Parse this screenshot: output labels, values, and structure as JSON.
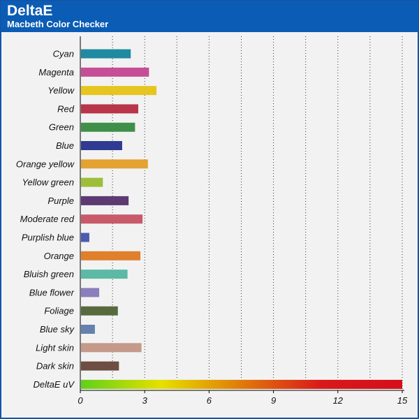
{
  "header": {
    "title": "DeltaE",
    "subtitle": "Macbeth Color Checker"
  },
  "colors": {
    "header_bg": "#0b5cb5",
    "plot_bg": "#f2f2f2",
    "grid": "#333333"
  },
  "chart_data": {
    "type": "bar",
    "orientation": "horizontal",
    "title": "DeltaE",
    "subtitle": "Macbeth Color Checker",
    "xlim": [
      0,
      15
    ],
    "xticks": [
      0,
      3,
      6,
      9,
      12,
      15
    ],
    "grid": "vertical dotted",
    "categories": [
      "Cyan",
      "Magenta",
      "Yellow",
      "Red",
      "Green",
      "Blue",
      "Orange yellow",
      "Yellow green",
      "Purple",
      "Moderate red",
      "Purplish blue",
      "Orange",
      "Bluish green",
      "Blue flower",
      "Foliage",
      "Blue sky",
      "Light skin",
      "Dark skin",
      "DeltaE uV"
    ],
    "values": [
      2.35,
      3.2,
      3.55,
      2.7,
      2.55,
      1.95,
      3.15,
      1.05,
      2.25,
      2.9,
      0.42,
      2.8,
      2.2,
      0.88,
      1.75,
      0.68,
      2.85,
      1.8,
      15
    ],
    "bar_colors": [
      "#1f8aa0",
      "#c64e96",
      "#e6c520",
      "#b8354a",
      "#3f8f49",
      "#2f3b92",
      "#e3a232",
      "#9ebe3a",
      "#5e3a72",
      "#c85a6a",
      "#4b5bb0",
      "#e07f2c",
      "#5cb9a6",
      "#8a7fbc",
      "#576a3e",
      "#6482ad",
      "#c59a8a",
      "#6e4e42",
      "gradient"
    ],
    "gradient_stops": [
      "#5fd11a",
      "#e6e000",
      "#e07a0a",
      "#d9181a",
      "#d40f1a"
    ]
  }
}
